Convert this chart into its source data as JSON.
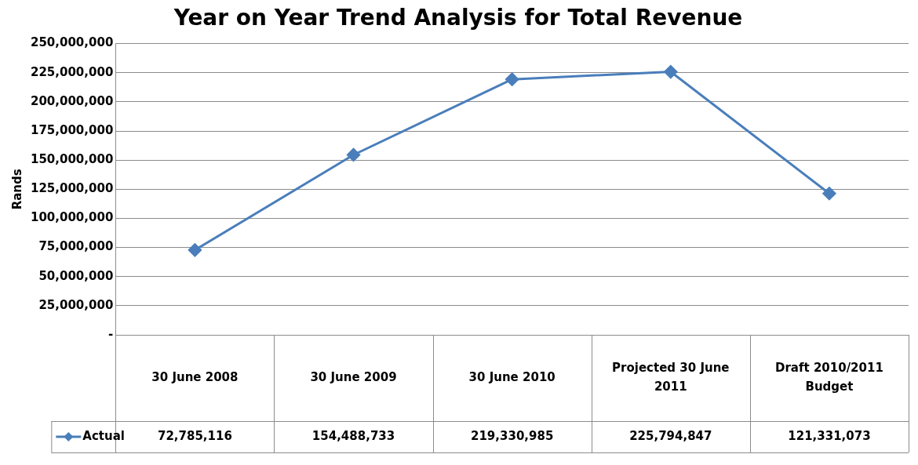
{
  "chart_data": {
    "type": "line",
    "title": "Year on Year Trend Analysis for Total Revenue",
    "ylabel": "Rands",
    "categories": [
      "30 June 2008",
      "30 June 2009",
      "30 June 2010",
      "Projected 30 June 2011",
      "Draft 2010/2011 Budget"
    ],
    "series": [
      {
        "name": "Actual",
        "color": "#4a7ebb",
        "values": [
          72785116,
          154488733,
          219330985,
          225794847,
          121331073
        ],
        "value_labels": [
          "72,785,116",
          "154,488,733",
          "219,330,985",
          "225,794,847",
          "121,331,073"
        ]
      }
    ],
    "ylim": [
      0,
      250000000
    ],
    "yticks": [
      {
        "value": 0,
        "label": "-"
      },
      {
        "value": 25000000,
        "label": "25,000,000"
      },
      {
        "value": 50000000,
        "label": "50,000,000"
      },
      {
        "value": 75000000,
        "label": "75,000,000"
      },
      {
        "value": 100000000,
        "label": "100,000,000"
      },
      {
        "value": 125000000,
        "label": "125,000,000"
      },
      {
        "value": 150000000,
        "label": "150,000,000"
      },
      {
        "value": 175000000,
        "label": "175,000,000"
      },
      {
        "value": 200000000,
        "label": "200,000,000"
      },
      {
        "value": 225000000,
        "label": "225,000,000"
      },
      {
        "value": 250000000,
        "label": "250,000,000"
      }
    ],
    "grid": "y",
    "marker": "diamond",
    "line_style": "solid",
    "legend": "bottom left"
  }
}
